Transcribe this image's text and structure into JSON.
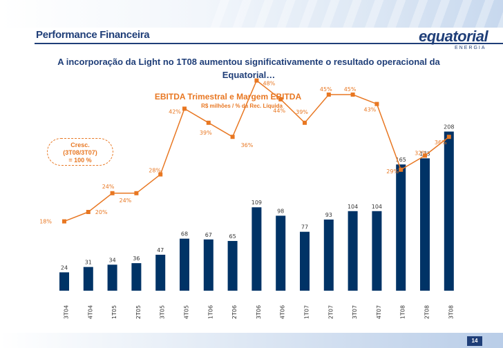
{
  "header": {
    "title": "Performance Financeira",
    "logo_name": "equatorial",
    "logo_sub": "ENERGIA",
    "headline": "A incorporação da Light no 1T08 aumentou significativamente o resultado operacional da Equatorial…"
  },
  "growth_note": {
    "line1": "Cresc.",
    "line2": "(3T08/3T07)",
    "line3": "= 100 %"
  },
  "page_number": "14",
  "colors": {
    "bar": "#003366",
    "line": "#e87722",
    "title": "#1f3e78"
  },
  "chart_data": {
    "type": "bar",
    "title": "EBITDA Trimestral e Margem EBITDA",
    "subtitle": "R$ milhões / % da Rec. Líquida",
    "categories": [
      "3T04",
      "4T04",
      "1T05",
      "2T05",
      "3T05",
      "4T05",
      "1T06",
      "2T06",
      "3T06",
      "4T06",
      "1T07",
      "2T07",
      "3T07",
      "4T07",
      "1T08",
      "2T08",
      "3T08"
    ],
    "series": [
      {
        "values": [
          24,
          31,
          34,
          36,
          47,
          68,
          67,
          65,
          109,
          98,
          77,
          93,
          104,
          104,
          165,
          173,
          208
        ]
      },
      {
        "values": [
          18,
          20,
          24,
          24,
          28,
          42,
          39,
          36,
          48,
          44,
          39,
          45,
          45,
          43,
          29,
          32,
          36
        ]
      }
    ],
    "bar_labels": [
      "24",
      "31",
      "34",
      "36",
      "47",
      "68",
      "67",
      "65",
      "109",
      "98",
      "77",
      "93",
      "104",
      "104",
      "165",
      "173",
      "208"
    ],
    "margin_labels": [
      "18%",
      "20%",
      "24%",
      "24%",
      "28%",
      "42%",
      "39%",
      "36%",
      "48%",
      "44%",
      "39%",
      "45%",
      "45%",
      "43%",
      "29%",
      "32%",
      "36%"
    ]
  }
}
